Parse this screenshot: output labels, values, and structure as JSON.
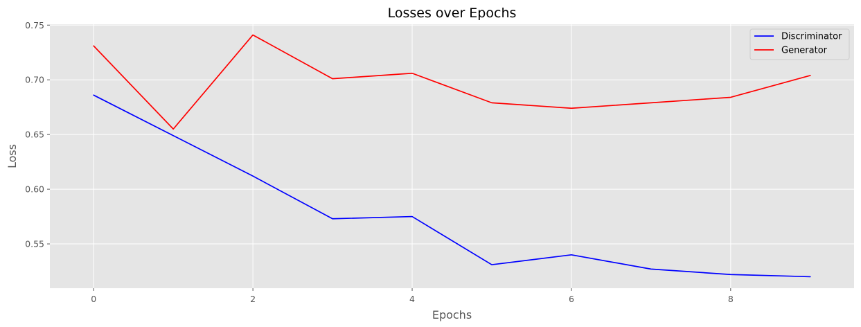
{
  "chart_data": {
    "type": "line",
    "title": "Losses over Epochs",
    "xlabel": "Epochs",
    "ylabel": "Loss",
    "x": [
      0,
      1,
      2,
      3,
      4,
      5,
      6,
      7,
      8,
      9
    ],
    "xlim": [
      -0.55,
      9.55
    ],
    "ylim": [
      0.5095,
      0.7508
    ],
    "xticks": [
      0,
      2,
      4,
      6,
      8
    ],
    "yticks": [
      0.55,
      0.6,
      0.65,
      0.7,
      0.75
    ],
    "xtick_labels": [
      "0",
      "2",
      "4",
      "6",
      "8"
    ],
    "ytick_labels": [
      "0.55",
      "0.60",
      "0.65",
      "0.70",
      "0.75"
    ],
    "grid": true,
    "legend_position": "top-right",
    "series": [
      {
        "name": "Discriminator",
        "color": "#0000ff",
        "values": [
          0.686,
          0.649,
          0.612,
          0.573,
          0.575,
          0.531,
          0.54,
          0.527,
          0.522,
          0.52
        ]
      },
      {
        "name": "Generator",
        "color": "#ff0000",
        "values": [
          0.731,
          0.655,
          0.741,
          0.701,
          0.706,
          0.679,
          0.674,
          0.679,
          0.684,
          0.704
        ]
      }
    ],
    "colors": {
      "plot_background": "#e5e5e5",
      "grid": "#ffffff",
      "tick_label": "#555555"
    }
  }
}
